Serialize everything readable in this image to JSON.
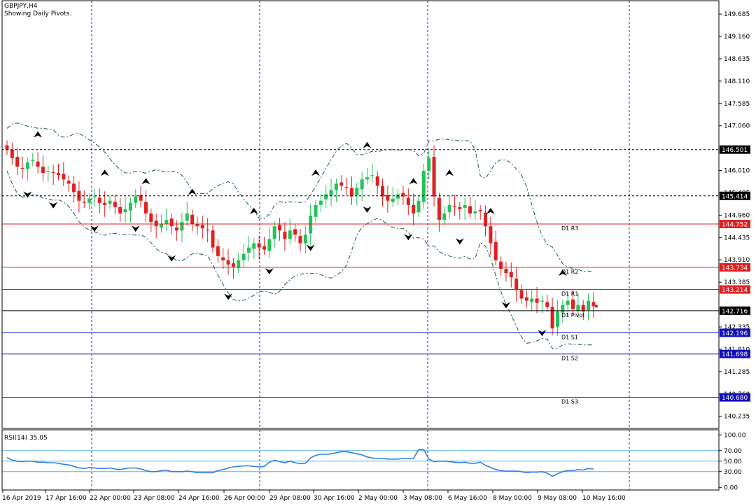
{
  "header": {
    "symbol": "GBPJPY,H4",
    "subtitle": "Showing Daily Pivots."
  },
  "rsi_label": "RSI(14) 35.05",
  "colors": {
    "bull": "#22c35a",
    "bear": "#e02020",
    "resistance": "#e02020",
    "support": "#1010c0",
    "pivot": "#000000",
    "channel": "#1a5a4a",
    "rsi": "#3080e0",
    "rsi_level": "#5ab0e0"
  },
  "chart_data": [
    {
      "type": "candlestick",
      "title": "GBPJPY,H4",
      "subtitle": "Showing Daily Pivots.",
      "y_ticks": [
        "149.685",
        "149.160",
        "148.635",
        "148.110",
        "147.585",
        "147.060",
        "146.010",
        "145.485",
        "144.960",
        "144.435",
        "143.910",
        "143.385",
        "142.335",
        "141.810",
        "141.285",
        "140.760",
        "140.235"
      ],
      "ylim": [
        139.95,
        149.95
      ],
      "x_ticks": [
        "16 Apr 2019",
        "17 Apr 16:00",
        "22 Apr 00:00",
        "23 Apr 08:00",
        "24 Apr 16:00",
        "26 Apr 00:00",
        "29 Apr 08:00",
        "30 Apr 16:00",
        "2 May 00:00",
        "3 May 08:00",
        "6 May 16:00",
        "8 May 00:00",
        "9 May 08:00",
        "10 May 16:00"
      ],
      "pivot_lines": [
        {
          "label": "D1 R3",
          "value": 144.752,
          "tag": "144.752",
          "kind": "resistance"
        },
        {
          "label": "D1 R2",
          "value": 143.734,
          "tag": "143.734",
          "kind": "resistance"
        },
        {
          "label": "D1 R1",
          "value": 143.214,
          "tag": "143.214",
          "kind": "resistance"
        },
        {
          "label": "D1 Pivot",
          "value": 142.716,
          "tag": "142.716",
          "kind": "pivot"
        },
        {
          "label": "D1 S1",
          "value": 142.196,
          "tag": "142.196",
          "kind": "support"
        },
        {
          "label": "D1 S2",
          "value": 141.698,
          "tag": "141.698",
          "kind": "support"
        },
        {
          "label": "D1 S3",
          "value": 140.68,
          "tag": "140.680",
          "kind": "support"
        }
      ],
      "horizontal_levels": [
        {
          "value": 146.501,
          "tag": "146.501"
        },
        {
          "value": 145.414,
          "tag": "145.414"
        }
      ],
      "series": [
        {
          "name": "GBPJPY",
          "close": [
            146.5,
            146.3,
            146.1,
            146.05,
            146.2,
            146.25,
            146.1,
            145.95,
            146.0,
            145.95,
            145.9,
            145.8,
            145.7,
            145.5,
            145.3,
            145.25,
            145.35,
            145.4,
            145.25,
            145.2,
            145.3,
            145.15,
            145.0,
            145.1,
            145.25,
            145.4,
            145.3,
            145.0,
            144.8,
            144.7,
            144.75,
            144.85,
            144.7,
            144.6,
            144.8,
            145.0,
            144.75,
            144.7,
            144.65,
            144.6,
            144.2,
            144.0,
            143.9,
            143.8,
            143.75,
            143.9,
            144.05,
            144.2,
            144.3,
            144.2,
            144.15,
            144.4,
            144.7,
            144.6,
            144.4,
            144.6,
            144.5,
            144.3,
            144.5,
            144.95,
            145.2,
            145.3,
            145.45,
            145.55,
            145.7,
            145.65,
            145.6,
            145.4,
            145.6,
            145.8,
            145.85,
            145.9,
            145.65,
            145.4,
            145.3,
            145.35,
            145.45,
            145.4,
            145.2,
            145.0,
            145.3,
            146.0,
            146.3,
            145.4,
            144.85,
            145.0,
            145.2,
            145.15,
            145.1,
            145.2,
            145.0,
            145.05,
            145.05,
            144.7,
            144.3,
            143.9,
            143.7,
            143.6,
            143.5,
            143.2,
            143.0,
            142.95,
            143.0,
            142.9,
            142.95,
            142.8,
            142.3,
            142.7,
            142.85,
            142.95,
            142.75,
            142.85,
            142.7,
            142.95,
            142.82
          ]
        }
      ]
    },
    {
      "type": "line",
      "title": "RSI(14) 35.05",
      "y_ticks": [
        "100.00",
        "70.00",
        "50.00",
        "30.00",
        "0.00"
      ],
      "ylim": [
        -5,
        107
      ],
      "levels": [
        70,
        50,
        30
      ],
      "series": [
        {
          "name": "RSI(14)",
          "values": [
            57,
            52,
            50,
            49,
            50,
            50,
            48,
            48,
            47,
            47,
            46,
            44,
            43,
            40,
            37,
            36,
            38,
            37,
            36,
            36,
            37,
            35,
            34,
            36,
            37,
            37,
            35,
            32,
            30,
            30,
            32,
            33,
            30,
            30,
            30,
            31,
            30,
            28,
            28,
            28,
            28,
            32,
            34,
            37,
            39,
            40,
            41,
            41,
            40,
            39,
            40,
            48,
            52,
            49,
            47,
            50,
            47,
            45,
            46,
            56,
            61,
            63,
            63,
            64,
            66,
            68,
            68,
            66,
            64,
            62,
            58,
            56,
            55,
            55,
            54,
            54,
            54,
            55,
            55,
            55,
            72,
            72,
            54,
            49,
            50,
            50,
            49,
            48,
            47,
            48,
            46,
            46,
            48,
            42,
            38,
            34,
            32,
            31,
            31,
            31,
            30,
            28,
            29,
            29,
            30,
            27,
            21,
            26,
            30,
            32,
            32,
            34,
            33,
            36,
            35
          ]
        }
      ]
    }
  ]
}
